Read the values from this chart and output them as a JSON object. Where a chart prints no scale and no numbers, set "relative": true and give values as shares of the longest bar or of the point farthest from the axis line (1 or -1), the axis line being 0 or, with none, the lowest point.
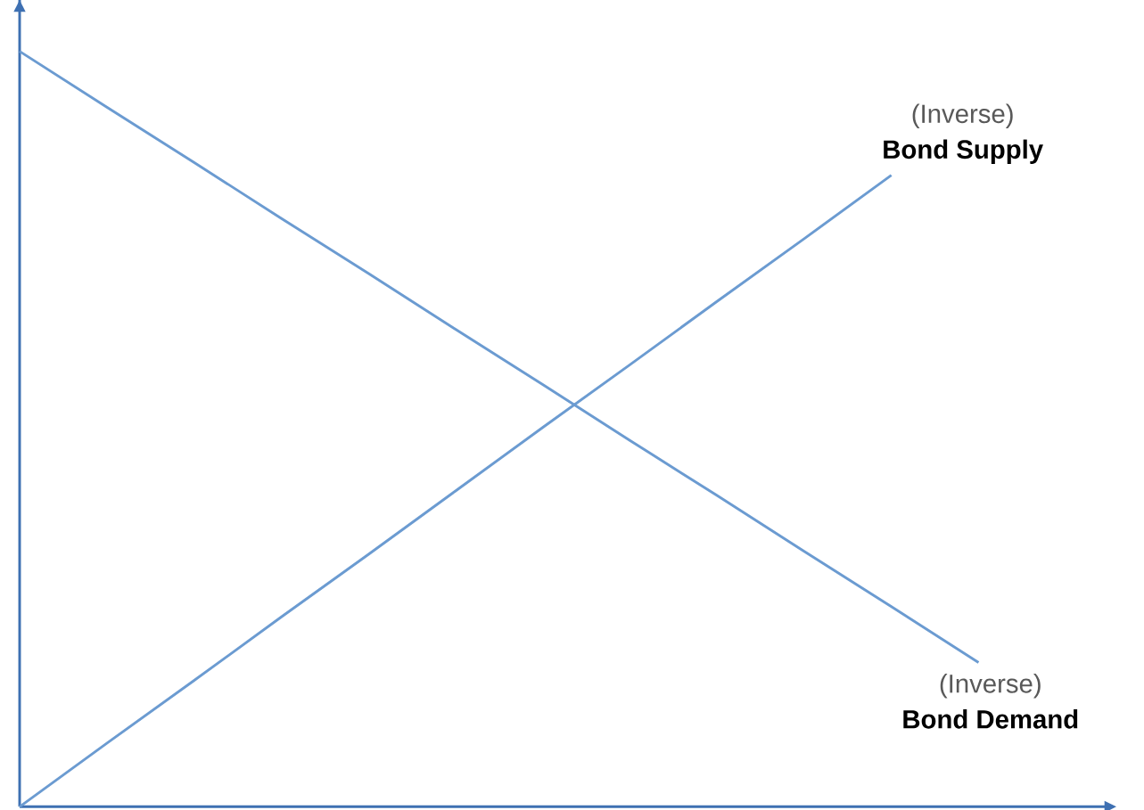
{
  "chart_data": {
    "type": "line",
    "relative": true,
    "line_style": "solid",
    "categories": [
      null,
      null,
      null,
      null,
      null,
      null,
      null,
      null,
      null,
      null,
      null,
      null
    ],
    "series": [
      {
        "name": "Bond Supply",
        "color": "#6b9bd1",
        "values": [
          0,
          0.084,
          0.167,
          0.251,
          0.334,
          0.418,
          0.502,
          0.585,
          0.669,
          0.752,
          0.836,
          null
        ]
      },
      {
        "name": "Bond Demand",
        "color": "#6b9bd1",
        "values": [
          1,
          0.926,
          0.853,
          0.779,
          0.706,
          0.632,
          0.559,
          0.485,
          0.412,
          0.338,
          0.265,
          0.191
        ]
      }
    ],
    "annotations": [
      "(Inverse)",
      "(Inverse)"
    ]
  }
}
